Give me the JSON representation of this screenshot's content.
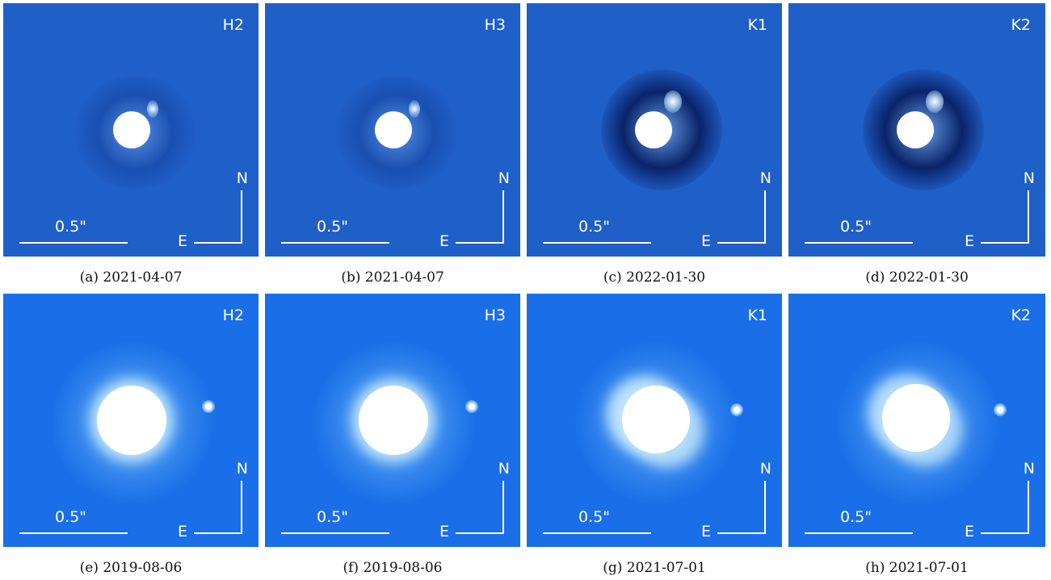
{
  "scale_label": "0.5\"",
  "compass": {
    "north": "N",
    "east": "E"
  },
  "panels": [
    {
      "band": "H2",
      "caption": "(a) 2021-04-07"
    },
    {
      "band": "H3",
      "caption": "(b) 2021-04-07"
    },
    {
      "band": "K1",
      "caption": "(c) 2022-01-30"
    },
    {
      "band": "K2",
      "caption": "(d) 2022-01-30"
    },
    {
      "band": "H2",
      "caption": "(e) 2019-08-06"
    },
    {
      "band": "H3",
      "caption": "(f) 2019-08-06"
    },
    {
      "band": "K1",
      "caption": "(g) 2021-07-01"
    },
    {
      "band": "K2",
      "caption": "(h) 2021-07-01"
    }
  ],
  "colors": {
    "row1_background": "#1f5fc8",
    "row2_background": "#1a6ee8",
    "mask": "#ffffff"
  }
}
